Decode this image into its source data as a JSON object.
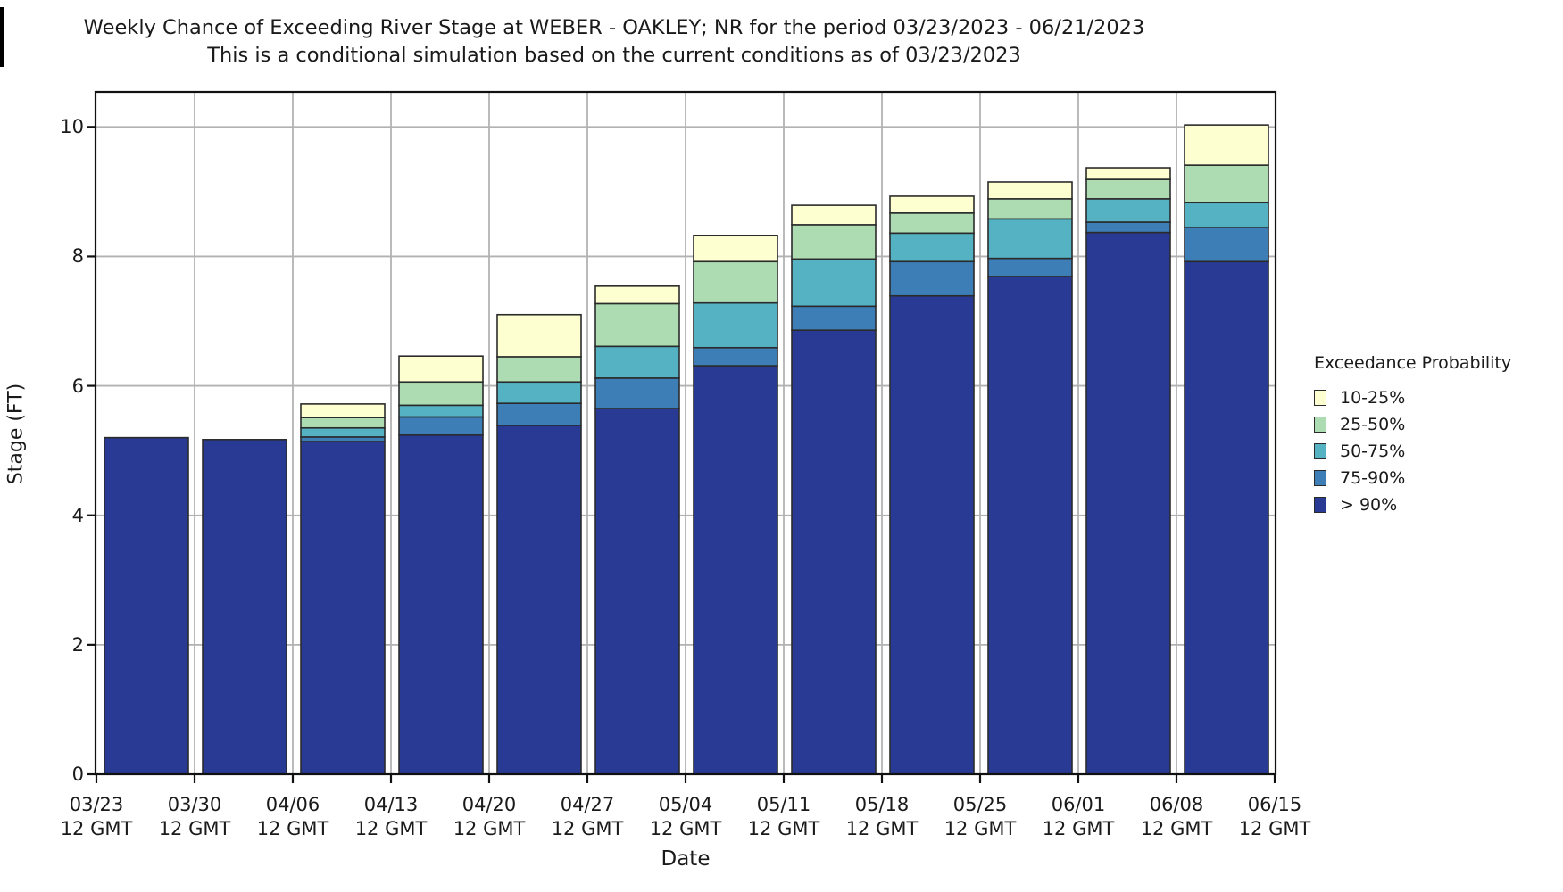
{
  "chart_data": {
    "type": "bar",
    "stacked": true,
    "title": "Weekly Chance of Exceeding River Stage at WEBER - OAKLEY; NR for the period 03/23/2023 - 06/21/2023",
    "subtitle": "This is a conditional simulation based on the current conditions as of 03/23/2023",
    "xlabel": "Date",
    "ylabel": "Stage (FT)",
    "ylim": [
      0,
      10.54
    ],
    "yticks": [
      0,
      2,
      4,
      6,
      8,
      10
    ],
    "x_tick_dates": [
      "03/23",
      "03/30",
      "04/06",
      "04/13",
      "04/20",
      "04/27",
      "05/04",
      "05/11",
      "05/18",
      "05/25",
      "06/01",
      "06/08",
      "06/15"
    ],
    "x_tick_time": "12 GMT",
    "grid": true,
    "legend_position": "right",
    "legend": {
      "title": "Exceedance Probability",
      "entries": [
        {
          "label": "10-25%",
          "color": "#feffd0"
        },
        {
          "label": "25-50%",
          "color": "#addcb3"
        },
        {
          "label": "50-75%",
          "color": "#54b2c3"
        },
        {
          "label": "75-90%",
          "color": "#3d7eb7"
        },
        {
          "label": "> 90%",
          "color": "#283a93"
        }
      ]
    },
    "segments_draw_order": [
      {
        "key": "gt90",
        "label": "> 90%",
        "color": "#283a93"
      },
      {
        "key": "p75_90",
        "label": "75-90%",
        "color": "#3d7eb7"
      },
      {
        "key": "p50_75",
        "label": "50-75%",
        "color": "#54b2c3"
      },
      {
        "key": "p25_50",
        "label": "25-50%",
        "color": "#addcb3"
      },
      {
        "key": "p10_25",
        "label": "10-25%",
        "color": "#feffd0"
      }
    ],
    "values_are": "cumulative stage tops in FT for each exceedance-probability band",
    "bars": [
      {
        "week_start": "03/23",
        "gt90": 5.2,
        "p75_90": 5.2,
        "p50_75": 5.2,
        "p25_50": 5.2,
        "p10_25": 5.2
      },
      {
        "week_start": "03/30",
        "gt90": 5.17,
        "p75_90": 5.17,
        "p50_75": 5.17,
        "p25_50": 5.17,
        "p10_25": 5.17
      },
      {
        "week_start": "04/06",
        "gt90": 5.14,
        "p75_90": 5.21,
        "p50_75": 5.35,
        "p25_50": 5.51,
        "p10_25": 5.72
      },
      {
        "week_start": "04/13",
        "gt90": 5.24,
        "p75_90": 5.52,
        "p50_75": 5.7,
        "p25_50": 6.06,
        "p10_25": 6.46
      },
      {
        "week_start": "04/20",
        "gt90": 5.39,
        "p75_90": 5.73,
        "p50_75": 6.06,
        "p25_50": 6.45,
        "p10_25": 7.1
      },
      {
        "week_start": "04/27",
        "gt90": 5.65,
        "p75_90": 6.12,
        "p50_75": 6.61,
        "p25_50": 7.27,
        "p10_25": 7.54
      },
      {
        "week_start": "05/04",
        "gt90": 6.31,
        "p75_90": 6.59,
        "p50_75": 7.28,
        "p25_50": 7.92,
        "p10_25": 8.32
      },
      {
        "week_start": "05/11",
        "gt90": 6.86,
        "p75_90": 7.23,
        "p50_75": 7.96,
        "p25_50": 8.49,
        "p10_25": 8.79
      },
      {
        "week_start": "05/18",
        "gt90": 7.39,
        "p75_90": 7.92,
        "p50_75": 8.36,
        "p25_50": 8.67,
        "p10_25": 8.93
      },
      {
        "week_start": "05/25",
        "gt90": 7.69,
        "p75_90": 7.97,
        "p50_75": 8.58,
        "p25_50": 8.89,
        "p10_25": 9.15
      },
      {
        "week_start": "06/01",
        "gt90": 8.37,
        "p75_90": 8.53,
        "p50_75": 8.89,
        "p25_50": 9.19,
        "p10_25": 9.37
      },
      {
        "week_start": "06/08",
        "gt90": 7.92,
        "p75_90": 8.45,
        "p50_75": 8.83,
        "p25_50": 9.41,
        "p10_25": 10.03
      }
    ]
  }
}
